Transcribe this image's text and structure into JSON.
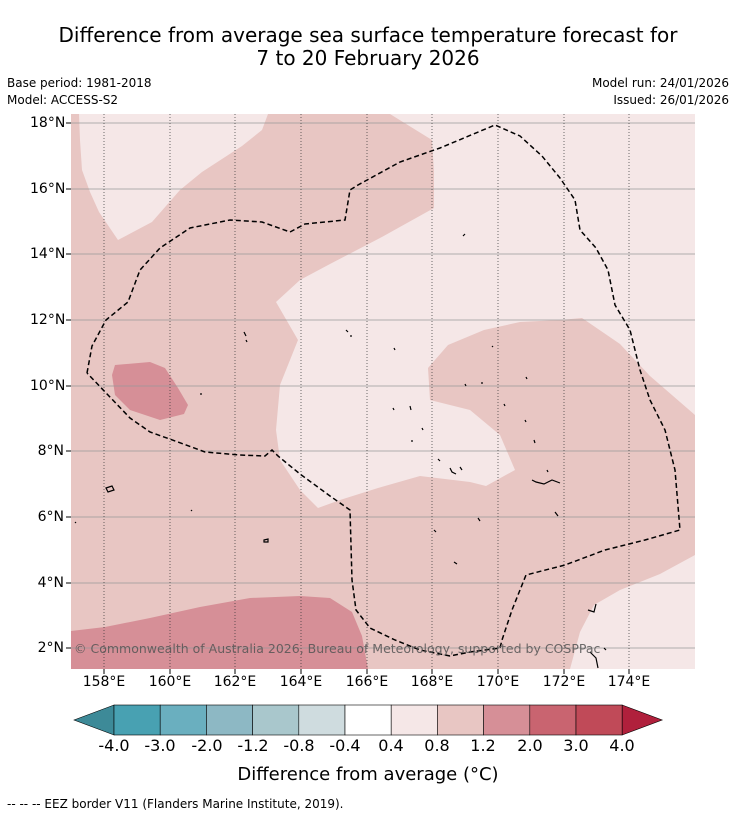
{
  "title_line1": "Difference from average sea surface temperature forecast for",
  "title_line2": "7 to 20 February 2026",
  "base_period": "Base period: 1981-2018",
  "model": "Model: ACCESS-S2",
  "model_run": "Model run: 24/01/2026",
  "issued": "Issued: 26/01/2026",
  "lat_labels": [
    "18°N",
    "16°N",
    "14°N",
    "12°N",
    "10°N",
    "8°N",
    "6°N",
    "4°N",
    "2°N"
  ],
  "lon_labels": [
    "158°E",
    "160°E",
    "162°E",
    "164°E",
    "166°E",
    "168°E",
    "170°E",
    "172°E",
    "174°E"
  ],
  "copyright": "© Commonwealth of Australia 2026, Bureau of Meteorology, supported by COSPPac",
  "colorbar": {
    "title": "Difference from average (°C)",
    "labels": [
      "-4.0",
      "-3.0",
      "-2.0",
      "-1.2",
      "-0.8",
      "-0.4",
      "0.4",
      "0.8",
      "1.2",
      "2.0",
      "3.0",
      "4.0"
    ],
    "colors": [
      "#3d8a98",
      "#48a1b2",
      "#6aafbf",
      "#8db8c4",
      "#a9c7cc",
      "#cfdcdf",
      "#ffffff",
      "#f5e7e7",
      "#e8c6c3",
      "#d68f97",
      "#c96470",
      "#c04a58",
      "#b0203c"
    ]
  },
  "legend": "--  --  -- EEZ border V11 (Flanders Marine Institute, 2019)."
}
